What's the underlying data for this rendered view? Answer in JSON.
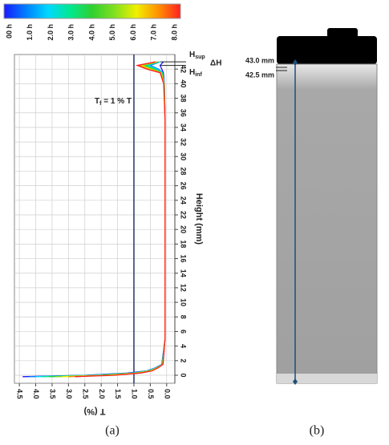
{
  "chart_data": {
    "type": "line",
    "x_label": "T (%)",
    "y_label": "Height (mm)",
    "y": [
      -0.2,
      0,
      0.3,
      0.6,
      1,
      1.5,
      5,
      20,
      35,
      40,
      41.5,
      42,
      42.5,
      43
    ],
    "series": [
      {
        "name": "00 h",
        "color": "#1a1aff",
        "values": [
          4.4,
          2.5,
          1.2,
          0.6,
          0.35,
          0.15,
          0.05,
          0.05,
          0.05,
          0.07,
          0.1,
          0.15,
          0.2,
          0.1
        ]
      },
      {
        "name": "1.0 h",
        "color": "#0080ff",
        "values": [
          4.2,
          2.4,
          1.1,
          0.6,
          0.33,
          0.14,
          0.05,
          0.05,
          0.05,
          0.07,
          0.12,
          0.25,
          0.5,
          0.2
        ]
      },
      {
        "name": "2.0 h",
        "color": "#00d8ff",
        "values": [
          4.0,
          2.2,
          1.0,
          0.55,
          0.32,
          0.14,
          0.05,
          0.05,
          0.05,
          0.07,
          0.13,
          0.3,
          0.6,
          0.2
        ]
      },
      {
        "name": "3.0 h",
        "color": "#00e890",
        "values": [
          3.8,
          2.1,
          1.0,
          0.55,
          0.3,
          0.13,
          0.05,
          0.05,
          0.05,
          0.07,
          0.14,
          0.35,
          0.65,
          0.25
        ]
      },
      {
        "name": "4.0 h",
        "color": "#30d030",
        "values": [
          3.6,
          2.0,
          0.95,
          0.5,
          0.3,
          0.13,
          0.05,
          0.05,
          0.05,
          0.08,
          0.15,
          0.4,
          0.7,
          0.25
        ]
      },
      {
        "name": "5.0 h",
        "color": "#80e020",
        "values": [
          3.4,
          1.9,
          0.9,
          0.5,
          0.3,
          0.12,
          0.05,
          0.05,
          0.05,
          0.08,
          0.16,
          0.45,
          0.75,
          0.3
        ]
      },
      {
        "name": "6.0 h",
        "color": "#f0f000",
        "values": [
          3.2,
          1.8,
          0.9,
          0.5,
          0.28,
          0.12,
          0.05,
          0.05,
          0.05,
          0.08,
          0.17,
          0.5,
          0.8,
          0.3
        ]
      },
      {
        "name": "7.0 h",
        "color": "#ff9000",
        "values": [
          3.0,
          1.7,
          0.85,
          0.45,
          0.28,
          0.12,
          0.05,
          0.05,
          0.05,
          0.08,
          0.18,
          0.55,
          0.85,
          0.3
        ]
      },
      {
        "name": "8.0 h",
        "color": "#ff2020",
        "values": [
          2.8,
          1.6,
          0.8,
          0.45,
          0.27,
          0.11,
          0.05,
          0.05,
          0.05,
          0.09,
          0.2,
          0.6,
          0.9,
          0.35
        ]
      }
    ],
    "xlim": [
      4.65,
      -0.25
    ],
    "xticks": [
      4.5,
      {
        "value": 4,
        "label": "4.0"
      },
      3.5,
      {
        "value": 3,
        "label": "3.0"
      },
      2.5,
      {
        "value": 2,
        "label": "2.0"
      },
      1.5,
      {
        "value": 1,
        "label": "1.0"
      },
      0.5,
      {
        "value": 0,
        "label": "0.0"
      }
    ],
    "ylim": [
      -1.1,
      44
    ],
    "yticks": [
      0,
      2,
      4,
      6,
      8,
      10,
      12,
      14,
      16,
      18,
      20,
      22,
      24,
      26,
      28,
      30,
      32,
      34,
      36,
      38,
      40,
      42
    ],
    "grid": true,
    "threshold": 1,
    "threshold_color": "#1f3864",
    "annotations": {
      "tf": {
        "base": "T",
        "sub": "f",
        "rest": " = 1 % T"
      },
      "hsup": {
        "base": "H",
        "sub": "sup"
      },
      "hinf": {
        "base": "H",
        "sub": "inf"
      },
      "dh": "ΔH"
    }
  },
  "panel_b": {
    "upper": "43.0 mm",
    "lower": "42.5 mm"
  },
  "captions": [
    "(a)",
    "(b)"
  ]
}
